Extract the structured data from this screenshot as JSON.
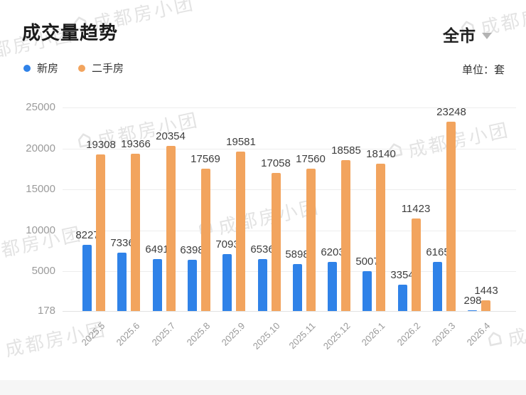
{
  "header": {
    "title": "成交量趋势",
    "region_selector": {
      "label": "全市"
    },
    "unit_label": "单位：套"
  },
  "legend": [
    {
      "label": "新房",
      "color": "#2F82E8"
    },
    {
      "label": "二手房",
      "color": "#F2A45E"
    }
  ],
  "watermark": {
    "text": "成都房小团"
  },
  "chart_data": {
    "type": "bar",
    "title": "成交量趋势",
    "unit": "套",
    "categories": [
      "2025.5",
      "2025.6",
      "2025.7",
      "2025.8",
      "2025.9",
      "2025.10",
      "2025.11",
      "2025.12",
      "2026.1",
      "2026.2",
      "2026.3",
      "2026.4"
    ],
    "series": [
      {
        "name": "新房",
        "key": "new-homes",
        "color": "#2F82E8",
        "values": [
          8227,
          7336,
          6491,
          6398,
          7093,
          6536,
          5898,
          6203,
          5007,
          3354,
          6165,
          298
        ]
      },
      {
        "name": "二手房",
        "key": "resale-homes",
        "color": "#F2A45E",
        "values": [
          19308,
          19366,
          20354,
          17569,
          19581,
          17058,
          17560,
          18585,
          18140,
          11423,
          23248,
          1443
        ]
      }
    ],
    "y_ticks": [
      178,
      5000,
      10000,
      15000,
      20000,
      25000
    ],
    "ylim": [
      178,
      25000
    ],
    "xlabel": "",
    "ylabel": "",
    "grid": true,
    "value_labels": true,
    "legend_position": "top-left",
    "x_label_rotation": -45
  }
}
